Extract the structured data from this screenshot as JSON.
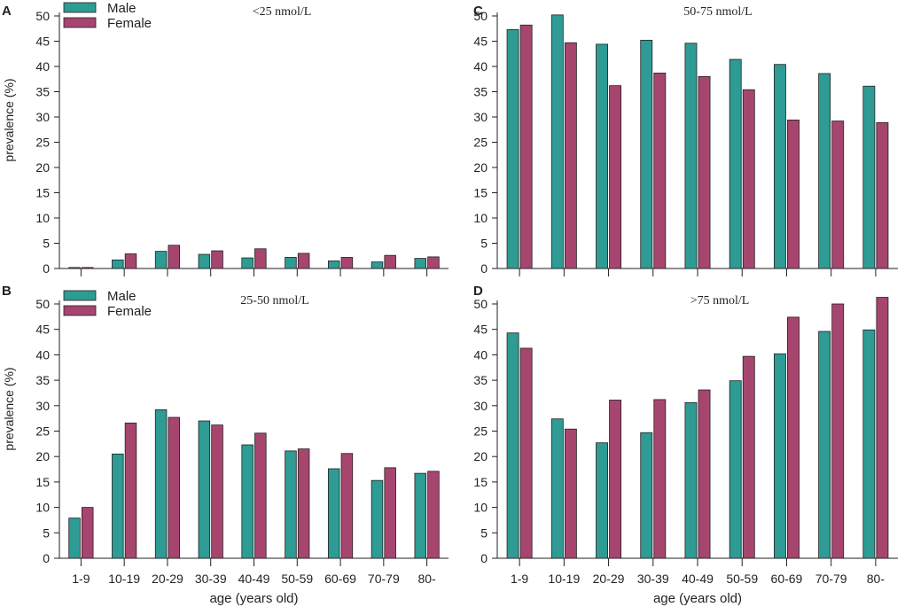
{
  "figure": {
    "x_axis_label": "age (years old)",
    "y_axis_label": "prevalence (%)"
  },
  "colors": {
    "male": "#2e9b94",
    "female": "#a6466f",
    "axis": "#231f20"
  },
  "chart_data": [
    {
      "id": "A",
      "type": "bar",
      "panel_letter": "A",
      "title": "<25 nmol/L",
      "categories": [
        "1-9",
        "10-19",
        "20-29",
        "30-39",
        "40-49",
        "50-59",
        "60-69",
        "70-79",
        "80-"
      ],
      "series": [
        {
          "name": "Male",
          "values": [
            0.2,
            1.7,
            3.4,
            2.8,
            2.1,
            2.2,
            1.5,
            1.3,
            2.0
          ]
        },
        {
          "name": "Female",
          "values": [
            0.2,
            2.9,
            4.6,
            3.5,
            3.9,
            3.0,
            2.2,
            2.6,
            2.3
          ]
        }
      ],
      "ylim": [
        0,
        50
      ],
      "yticks": [
        0,
        5,
        10,
        15,
        20,
        25,
        30,
        35,
        40,
        45,
        50
      ],
      "ylabel": "prevalence (%)",
      "xlabel": "",
      "show_xticklabels": false,
      "legend": "top-left"
    },
    {
      "id": "B",
      "type": "bar",
      "panel_letter": "B",
      "title": "25-50 nmol/L",
      "categories": [
        "1-9",
        "10-19",
        "20-29",
        "30-39",
        "40-49",
        "50-59",
        "60-69",
        "70-79",
        "80-"
      ],
      "series": [
        {
          "name": "Male",
          "values": [
            7.9,
            20.5,
            29.2,
            27.0,
            22.3,
            21.1,
            17.6,
            15.3,
            16.7
          ]
        },
        {
          "name": "Female",
          "values": [
            10.0,
            26.6,
            27.7,
            26.2,
            24.6,
            21.5,
            20.6,
            17.8,
            17.1
          ]
        }
      ],
      "ylim": [
        0,
        50
      ],
      "yticks": [
        0,
        5,
        10,
        15,
        20,
        25,
        30,
        35,
        40,
        45,
        50
      ],
      "ylabel": "prevalence (%)",
      "xlabel": "age (years old)",
      "show_xticklabels": true,
      "legend": "top-left"
    },
    {
      "id": "C",
      "type": "bar",
      "panel_letter": "C",
      "title": "50-75 nmol/L",
      "categories": [
        "1-9",
        "10-19",
        "20-29",
        "30-39",
        "40-49",
        "50-59",
        "60-69",
        "70-79",
        "80-"
      ],
      "series": [
        {
          "name": "Male",
          "values": [
            47.3,
            50.2,
            44.4,
            45.2,
            44.6,
            41.4,
            40.4,
            38.6,
            36.1
          ]
        },
        {
          "name": "Female",
          "values": [
            48.2,
            44.7,
            36.2,
            38.7,
            38.0,
            35.4,
            29.4,
            29.2,
            28.9
          ]
        }
      ],
      "ylim": [
        0,
        50
      ],
      "yticks": [
        0,
        5,
        10,
        15,
        20,
        25,
        30,
        35,
        40,
        45,
        50
      ],
      "ylabel": "",
      "xlabel": "",
      "show_xticklabels": false,
      "legend": "none"
    },
    {
      "id": "D",
      "type": "bar",
      "panel_letter": "D",
      "title": ">75 nmol/L",
      "categories": [
        "1-9",
        "10-19",
        "20-29",
        "30-39",
        "40-49",
        "50-59",
        "60-69",
        "70-79",
        "80-"
      ],
      "series": [
        {
          "name": "Male",
          "values": [
            44.3,
            27.4,
            22.7,
            24.7,
            30.6,
            34.9,
            40.2,
            44.6,
            44.9
          ]
        },
        {
          "name": "Female",
          "values": [
            41.3,
            25.4,
            31.1,
            31.2,
            33.1,
            39.7,
            47.4,
            50.0,
            51.3
          ]
        }
      ],
      "ylim": [
        0,
        50
      ],
      "yticks": [
        0,
        5,
        10,
        15,
        20,
        25,
        30,
        35,
        40,
        45,
        50
      ],
      "ylabel": "",
      "xlabel": "age (years old)",
      "show_xticklabels": true,
      "legend": "none"
    }
  ]
}
